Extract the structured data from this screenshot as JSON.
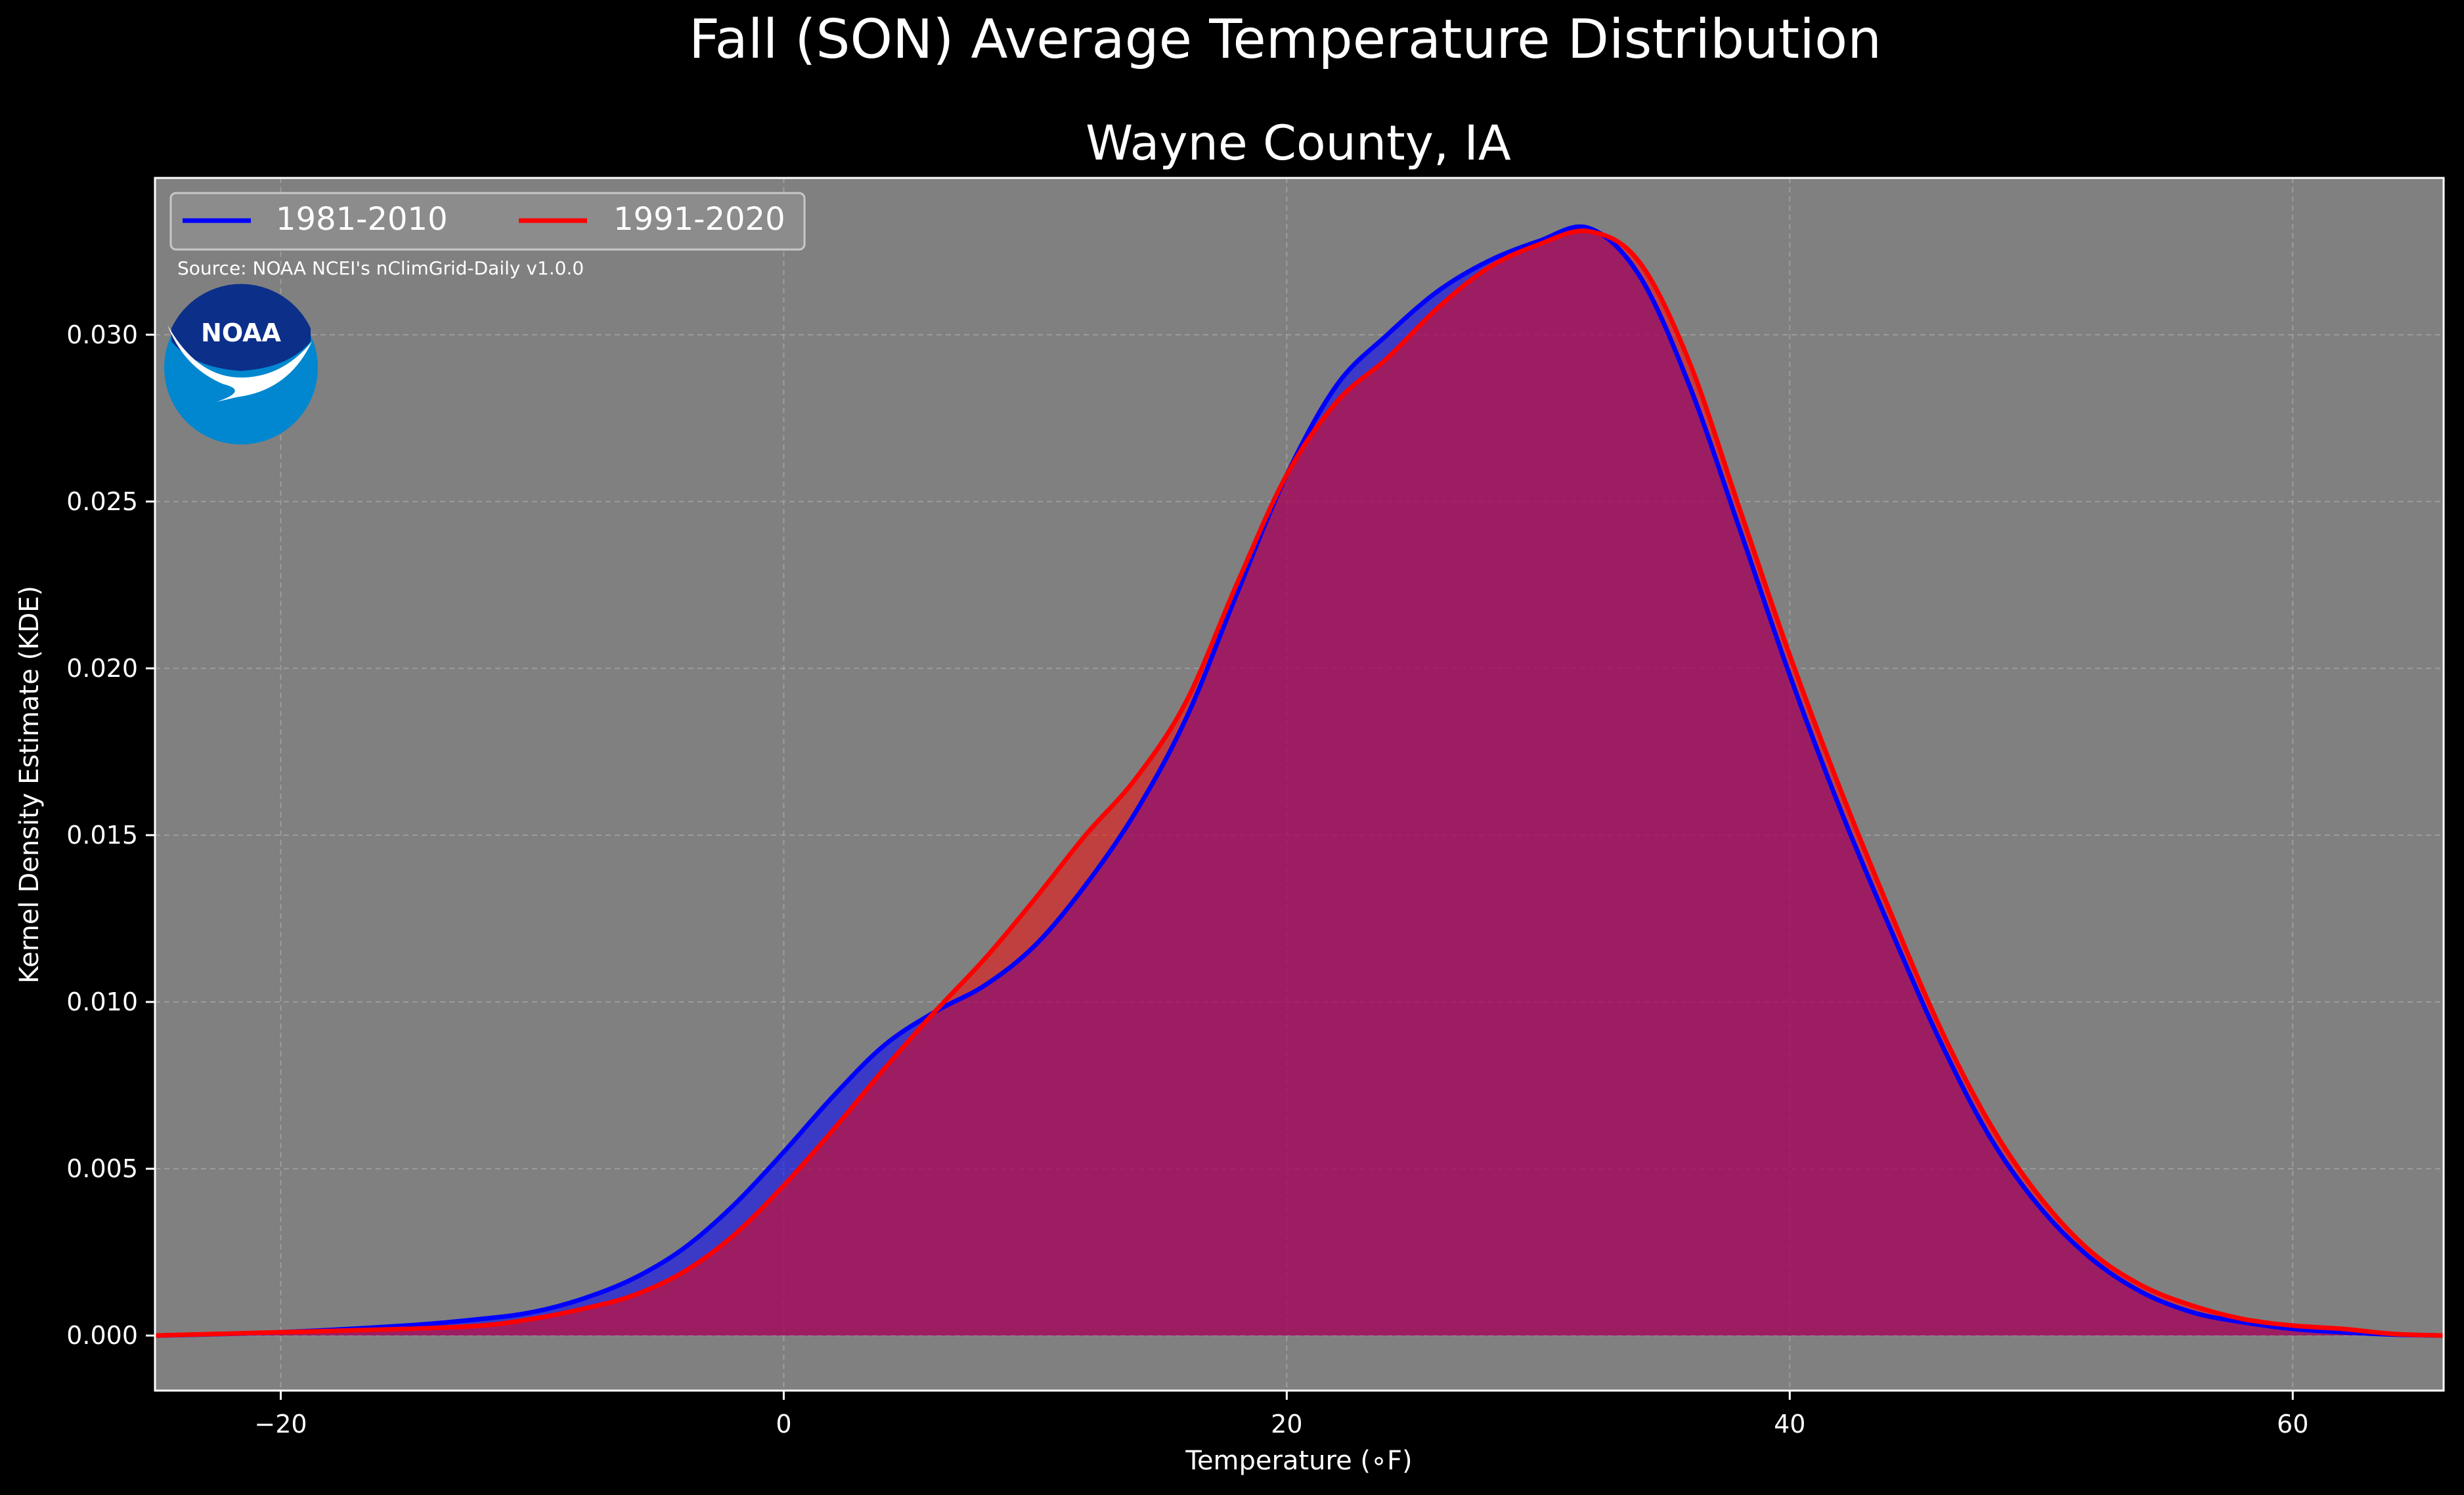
{
  "chart_data": {
    "type": "area",
    "suptitle": "Fall (SON) Average Temperature Distribution",
    "title": "Wayne County, IA",
    "xlabel": "Temperature (∘F)",
    "ylabel": "Kernel Density Estimate (KDE)",
    "xlim": [
      -25,
      66
    ],
    "ylim": [
      -0.00165,
      0.0347
    ],
    "xticks": [
      -20,
      0,
      20,
      40,
      60
    ],
    "xtick_labels": [
      "−20",
      "0",
      "20",
      "40",
      "60"
    ],
    "yticks": [
      0.0,
      0.005,
      0.01,
      0.015,
      0.02,
      0.025,
      0.03
    ],
    "ytick_labels": [
      "0.000",
      "0.005",
      "0.010",
      "0.015",
      "0.020",
      "0.025",
      "0.030"
    ],
    "grid": true,
    "legend_position": "top-left",
    "source": "Source: NOAA NCEI's nClimGrid-Daily v1.0.0",
    "logo_text": "NOAA",
    "colors": {
      "background": "#000000",
      "axes": "#808080",
      "series_1981": "#0000ff",
      "series_1991": "#ff0000",
      "overlap_fill": "#9e1f5d"
    },
    "x": [
      -25,
      -20,
      -15,
      -12,
      -10,
      -8,
      -6,
      -4,
      -2,
      0,
      2,
      4,
      6,
      8,
      10,
      12,
      14,
      16,
      18,
      20,
      22,
      24,
      26,
      28,
      30,
      32,
      34,
      36,
      38,
      40,
      42,
      44,
      46,
      48,
      50,
      52,
      54,
      56,
      58,
      60,
      62,
      64,
      66
    ],
    "series": [
      {
        "name": "1981-2010",
        "values": [
          0.0,
          0.0001,
          0.0003,
          0.0005,
          0.0007,
          0.0011,
          0.0017,
          0.0026,
          0.0039,
          0.0055,
          0.0072,
          0.0087,
          0.0097,
          0.0105,
          0.0117,
          0.0135,
          0.0157,
          0.0185,
          0.0222,
          0.0258,
          0.0285,
          0.03,
          0.0313,
          0.0322,
          0.0328,
          0.0332,
          0.0318,
          0.0285,
          0.0242,
          0.0198,
          0.0158,
          0.0122,
          0.0088,
          0.0059,
          0.0038,
          0.0023,
          0.0013,
          0.0007,
          0.0004,
          0.0002,
          0.0001,
          3e-05,
          0.0
        ]
      },
      {
        "name": "1991-2020",
        "values": [
          0.0,
          0.0001,
          0.0002,
          0.0003,
          0.0005,
          0.0008,
          0.0012,
          0.0019,
          0.003,
          0.0045,
          0.0062,
          0.008,
          0.0097,
          0.0113,
          0.0131,
          0.015,
          0.0167,
          0.019,
          0.0225,
          0.0258,
          0.028,
          0.0293,
          0.0308,
          0.032,
          0.0327,
          0.0331,
          0.0322,
          0.0292,
          0.0248,
          0.0204,
          0.0164,
          0.0127,
          0.0092,
          0.0063,
          0.0041,
          0.0025,
          0.0015,
          0.0009,
          0.0005,
          0.0003,
          0.0002,
          5e-05,
          0.0
        ]
      }
    ]
  }
}
